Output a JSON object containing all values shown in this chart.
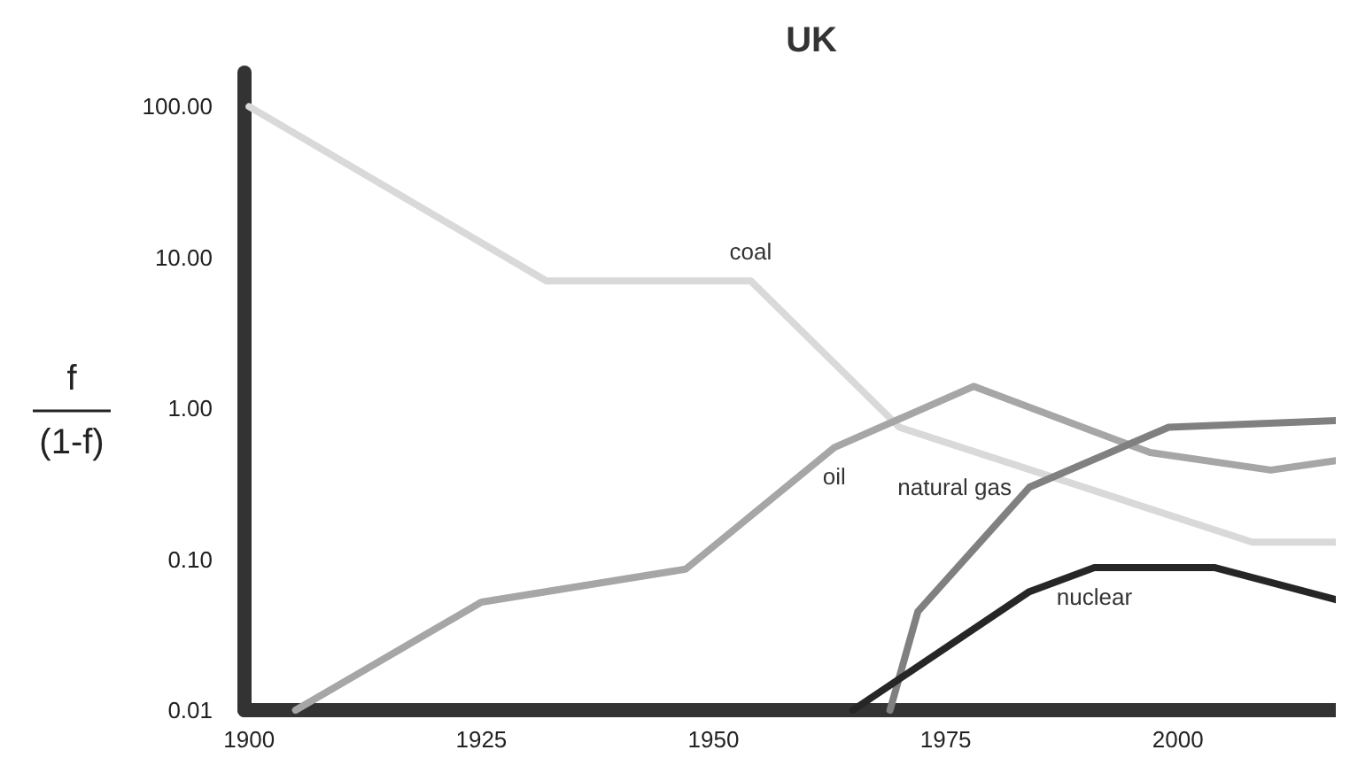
{
  "chart_data": {
    "type": "line",
    "title": "UK",
    "ylabel": "f\n(1-f)",
    "log": "y",
    "grid": false,
    "legend": false,
    "marker": "none",
    "line_style": "solid",
    "xlim": [
      1899.5,
      2017
    ],
    "xticks": [
      1900,
      1925,
      1950,
      1975,
      2000
    ],
    "ylim": [
      0.01,
      168
    ],
    "yticks": [
      {
        "value": 0.01,
        "label": "0.01"
      },
      {
        "value": 0.1,
        "label": "0.10"
      },
      {
        "value": 1,
        "label": "1.00"
      },
      {
        "value": 10,
        "label": "10.00"
      },
      {
        "value": 100,
        "label": "100.00"
      }
    ],
    "series": [
      {
        "name": "coal",
        "color": "#d9d9d9",
        "x": [
          1900,
          1932,
          1954,
          1970,
          2008,
          2017
        ],
        "values": [
          100,
          7,
          7,
          0.75,
          0.13,
          0.13
        ]
      },
      {
        "name": "oil",
        "color": "#a6a6a6",
        "x": [
          1905,
          1925,
          1947,
          1963,
          1978,
          1997,
          2010,
          2017
        ],
        "values": [
          0.01,
          0.052,
          0.086,
          0.55,
          1.4,
          0.51,
          0.39,
          0.45
        ]
      },
      {
        "name": "natural gas",
        "color": "#808080",
        "x": [
          1969,
          1972,
          1984,
          1999,
          2017
        ],
        "values": [
          0.01,
          0.045,
          0.3,
          0.75,
          0.83
        ]
      },
      {
        "name": "nuclear",
        "color": "#262626",
        "x": [
          1965,
          1984,
          1991,
          2004,
          2017
        ],
        "values": [
          0.01,
          0.061,
          0.088,
          0.088,
          0.054
        ]
      }
    ]
  }
}
